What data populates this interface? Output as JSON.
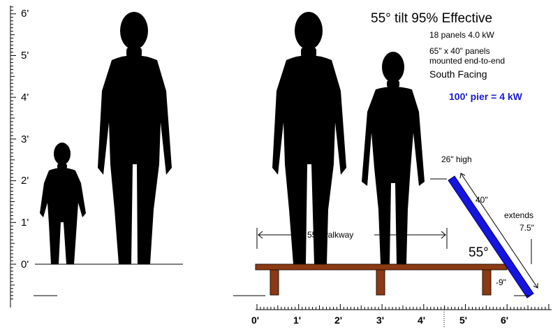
{
  "header": {
    "title": "55° tilt  95% Effective",
    "panels_line": "18 panels  4.0 kW",
    "size_line_1": "65\" x 40\" panels",
    "size_line_2": "mounted end-to-end",
    "orientation": "South Facing",
    "pier_capacity": "100' pier = 4 kW"
  },
  "left_scale": {
    "ticks": [
      "0'",
      "1'",
      "2'",
      "3'",
      "4'",
      "5'",
      "6'"
    ]
  },
  "bottom_scale": {
    "ticks": [
      "0'",
      "1'",
      "2'",
      "3'",
      "4'",
      "5'",
      "6'"
    ]
  },
  "annotations": {
    "walkway": "55\" walkway",
    "panel_top_height": "26\" high",
    "panel_length": "40\"",
    "extends_label": "extends",
    "extends_value": "7.5\"",
    "tilt_angle": "55°",
    "below_deck": "-9\""
  },
  "colors": {
    "silhouette": "#000000",
    "deck_fill": "#8b3a14",
    "deck_stroke": "#2a1004",
    "panel_fill": "#1515e0",
    "panel_stroke": "#000066",
    "pier_text": "#1a1acc"
  },
  "icons": [
    "person-silhouette-child",
    "person-silhouette-tall",
    "person-silhouette-adult",
    "person-silhouette-woman"
  ]
}
